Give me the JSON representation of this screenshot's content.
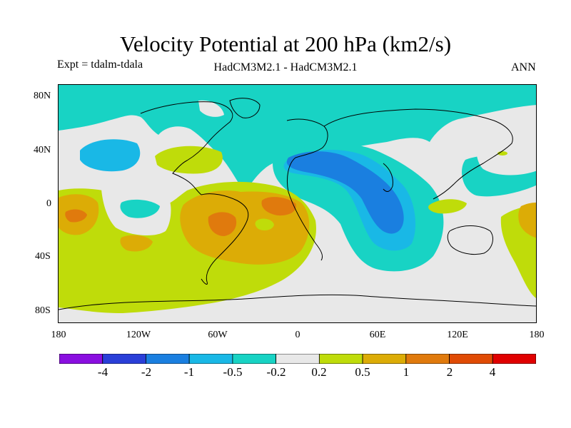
{
  "header": {
    "title": "Velocity Potential at 200 hPa (km2/s)",
    "expt": "Expt = tdalm-tdala",
    "models": "HadCM3M2.1 - HadCM3M2.1",
    "season": "ANN"
  },
  "axes": {
    "lat_labels": [
      "80N",
      "40N",
      "0",
      "40S",
      "80S"
    ],
    "lon_labels": [
      "180",
      "120W",
      "60W",
      "0",
      "60E",
      "120E",
      "180"
    ]
  },
  "colorbar": {
    "colors": [
      "#8a0fe0",
      "#2a3fd8",
      "#1a7fe0",
      "#19b8e6",
      "#18d3c4",
      "#e8e8e8",
      "#bfdc0a",
      "#dcac06",
      "#e07a0d",
      "#e04b05",
      "#e00000"
    ],
    "labels": [
      "-4",
      "-2",
      "-1",
      "-0.5",
      "-0.2",
      "0.2",
      "0.5",
      "1",
      "2",
      "4"
    ]
  },
  "palette": {
    "neg_weak": "#18d3c4",
    "neg_mid": "#19b8e6",
    "neg_strong": "#1a7fe0",
    "near_zero": "#e8e8e8",
    "pos_weak": "#bfdc0a",
    "pos_mid": "#dcac06",
    "pos_strong": "#e07a0d"
  }
}
